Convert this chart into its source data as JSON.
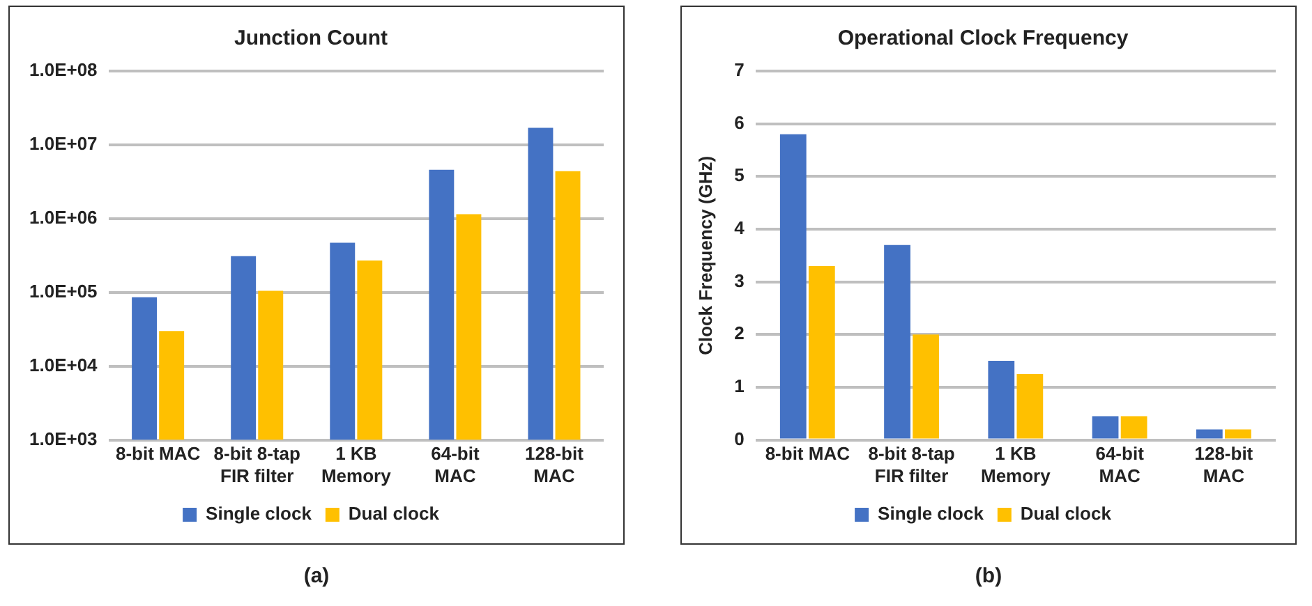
{
  "chart_data": [
    {
      "type": "bar",
      "title": "Junction Count",
      "categories": [
        "8-bit MAC",
        "8-bit 8-tap FIR filter",
        "1 KB Memory",
        "64-bit MAC",
        "128-bit MAC"
      ],
      "series": [
        {
          "name": "Single clock",
          "color": "#4472c4",
          "values": [
            86000,
            310000,
            470000,
            4600000,
            17000000
          ]
        },
        {
          "name": "Dual clock",
          "color": "#ffc000",
          "values": [
            30000,
            105000,
            270000,
            1150000,
            4400000
          ]
        }
      ],
      "log": "y",
      "ylim": [
        1000,
        100000000
      ],
      "yticks": [
        {
          "value": 1000,
          "label": "1.0E+03"
        },
        {
          "value": 10000,
          "label": "1.0E+04"
        },
        {
          "value": 100000,
          "label": "1.0E+05"
        },
        {
          "value": 1000000,
          "label": "1.0E+06"
        },
        {
          "value": 10000000,
          "label": "1.0E+07"
        },
        {
          "value": 100000000,
          "label": "1.0E+08"
        }
      ],
      "grid": "y",
      "legend": "bottom",
      "annotations": [
        "(a)"
      ]
    },
    {
      "type": "bar",
      "title": "Operational Clock Frequency",
      "ylabel": "Clock Frequency (GHz)",
      "categories": [
        "8-bit MAC",
        "8-bit 8-tap FIR filter",
        "1 KB Memory",
        "64-bit MAC",
        "128-bit MAC"
      ],
      "series": [
        {
          "name": "Single clock",
          "color": "#4472c4",
          "values": [
            5.8,
            3.7,
            1.5,
            0.45,
            0.2
          ]
        },
        {
          "name": "Dual clock",
          "color": "#ffc000",
          "values": [
            3.3,
            2.0,
            1.25,
            0.45,
            0.2
          ]
        }
      ],
      "ylim": [
        0,
        7
      ],
      "yticks": [
        0,
        1,
        2,
        3,
        4,
        5,
        6,
        7
      ],
      "grid": "y",
      "legend": "bottom",
      "annotations": [
        "(b)"
      ]
    }
  ]
}
